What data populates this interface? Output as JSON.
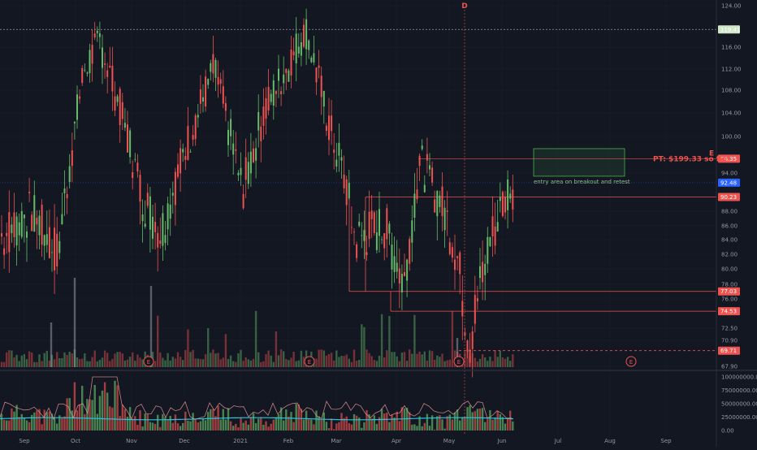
{
  "chart_data": {
    "type": "candlestick",
    "instrument": "",
    "x_axis": {
      "labels": [
        "Sep",
        "Oct",
        "Nov",
        "Dec",
        "2021",
        "Feb",
        "Mar",
        "Apr",
        "May",
        "Jun",
        "Jul",
        "Aug",
        "Sep"
      ]
    },
    "y_axis": {
      "range": [
        67.9,
        125.5
      ],
      "ticks": [
        "124.00",
        "116.00",
        "112.00",
        "108.00",
        "104.00",
        "100.00",
        "94.00",
        "88.00",
        "86.00",
        "84.00",
        "82.00",
        "80.00",
        "78.00",
        "76.00",
        "72.50",
        "70.90",
        "67.90"
      ],
      "tick_values": [
        124,
        116,
        112,
        108,
        104,
        100,
        94,
        88,
        86,
        84,
        82,
        80,
        78,
        76,
        72.5,
        70.9,
        67.9
      ]
    },
    "price_tags": [
      {
        "label": "119.41",
        "value": 119.41,
        "color": "#d1e7c9",
        "text_color": "#131722"
      },
      {
        "label": "96.35",
        "value": 96.35,
        "color": "#ef5350",
        "text_color": "#ffffff"
      },
      {
        "label": "92.48",
        "value": 92.48,
        "color": "#2962ff",
        "text_color": "#ffffff"
      },
      {
        "label": "90.23",
        "value": 90.23,
        "color": "#ef5350",
        "text_color": "#ffffff"
      },
      {
        "label": "77.03",
        "value": 77.03,
        "color": "#ef5350",
        "text_color": "#ffffff"
      },
      {
        "label": "74.53",
        "value": 74.53,
        "color": "#ef5350",
        "text_color": "#ffffff"
      },
      {
        "label": "69.71",
        "value": 69.71,
        "color": "#ef5350",
        "text_color": "#ffffff"
      }
    ],
    "price_path_anchors": [
      {
        "date": "Aug 20",
        "close": 84.5
      },
      {
        "date": "Sep 05",
        "close": 88
      },
      {
        "date": "Sep 20",
        "close": 82
      },
      {
        "date": "Oct 05",
        "close": 112
      },
      {
        "date": "Oct 14",
        "close": 117
      },
      {
        "date": "Oct 28",
        "close": 102
      },
      {
        "date": "Nov 07",
        "close": 90
      },
      {
        "date": "Nov 18",
        "close": 85
      },
      {
        "date": "Dec 04",
        "close": 100
      },
      {
        "date": "Dec 18",
        "close": 112
      },
      {
        "date": "Jan 03",
        "close": 91
      },
      {
        "date": "Jan 15",
        "close": 104
      },
      {
        "date": "Jan 28",
        "close": 112
      },
      {
        "date": "Feb 08",
        "close": 119.4
      },
      {
        "date": "Feb 22",
        "close": 101
      },
      {
        "date": "Mar 03",
        "close": 92
      },
      {
        "date": "Mar 08",
        "close": 84
      },
      {
        "date": "Mar 25",
        "close": 86
      },
      {
        "date": "Apr 05",
        "close": 78
      },
      {
        "date": "Apr 14",
        "close": 96
      },
      {
        "date": "Apr 28",
        "close": 88
      },
      {
        "date": "May 05",
        "close": 82
      },
      {
        "date": "May 12",
        "close": 70.5
      },
      {
        "date": "May 22",
        "close": 82
      },
      {
        "date": "Jun 02",
        "close": 91
      },
      {
        "date": "Jun 12",
        "close": 93
      }
    ],
    "zones": [
      {
        "top": 98.0,
        "bottom": 93.5,
        "label": "entry area on breakout and retest",
        "color": "#4caf50"
      }
    ],
    "annotation_pt": "PT: $199.33 so far",
    "marker_d": "D",
    "marker_e_top": "E",
    "earnings_markers": [
      "E",
      "E",
      "E",
      "E"
    ],
    "oscillator": {
      "ticks": [
        "100000000.00",
        "75000000.00",
        "50000000.00",
        "25000000.00",
        "0.00"
      ],
      "tick_values": [
        100000000,
        75000000,
        50000000,
        25000000,
        0
      ]
    },
    "colors": {
      "up": "#66bb6a",
      "down": "#ef5350",
      "volume_up": "rgba(102,187,106,0.45)",
      "volume_down": "rgba(239,83,80,0.45)",
      "grid": "#2a2e39",
      "background": "#131722",
      "axis_text": "#9598a1",
      "osc_line": "#26c6da"
    }
  }
}
